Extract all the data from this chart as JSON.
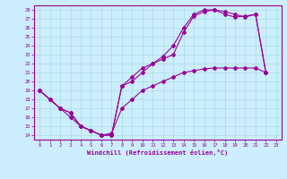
{
  "bg_color": "#cceeff",
  "line_color": "#990099",
  "grid_color": "#aadddd",
  "xlim": [
    -0.5,
    23.5
  ],
  "ylim": [
    13.5,
    28.5
  ],
  "xticks": [
    0,
    1,
    2,
    3,
    4,
    5,
    6,
    7,
    8,
    9,
    10,
    11,
    12,
    13,
    14,
    15,
    16,
    17,
    18,
    19,
    20,
    21,
    22,
    23
  ],
  "yticks": [
    14,
    15,
    16,
    17,
    18,
    19,
    20,
    21,
    22,
    23,
    24,
    25,
    26,
    27,
    28
  ],
  "xlabel": "Windchill (Refroidissement éolien,°C)",
  "line1_x": [
    0,
    1,
    2,
    3,
    4,
    5,
    6,
    7,
    8,
    9,
    10,
    11,
    12,
    13,
    14,
    15,
    16,
    17,
    18,
    19,
    20,
    21,
    22
  ],
  "line1_y": [
    19,
    18,
    17,
    16.5,
    15,
    14.5,
    14,
    14,
    19.5,
    20.5,
    21.5,
    22,
    22.5,
    23,
    25.5,
    27.3,
    27.8,
    28,
    27.8,
    27.5,
    27.2,
    27.5,
    21
  ],
  "line2_x": [
    0,
    1,
    2,
    3,
    4,
    5,
    6,
    7,
    8,
    9,
    10,
    11,
    12,
    13,
    14,
    15,
    16,
    17,
    18,
    19,
    20,
    21,
    22
  ],
  "line2_y": [
    19,
    18,
    17,
    16.5,
    15,
    14.5,
    14,
    14,
    19.5,
    20,
    21,
    22,
    22.8,
    24,
    26,
    27.5,
    28,
    28,
    27.5,
    27.2,
    27.3,
    27.5,
    21
  ],
  "line3_x": [
    0,
    1,
    2,
    3,
    4,
    5,
    6,
    7,
    8,
    9,
    10,
    11,
    12,
    13,
    14,
    15,
    16,
    17,
    18,
    19,
    20,
    21,
    22
  ],
  "line3_y": [
    19,
    18,
    17,
    16,
    15,
    14.5,
    14,
    14.2,
    17,
    18,
    19,
    19.5,
    20,
    20.5,
    21,
    21.2,
    21.4,
    21.5,
    21.5,
    21.5,
    21.5,
    21.5,
    21
  ]
}
